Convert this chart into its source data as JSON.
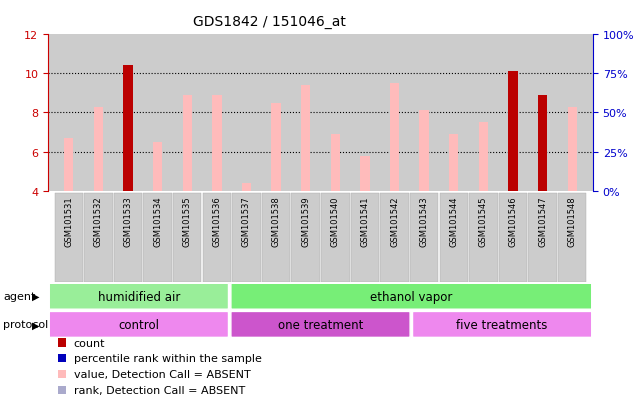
{
  "title": "GDS1842 / 151046_at",
  "samples": [
    "GSM101531",
    "GSM101532",
    "GSM101533",
    "GSM101534",
    "GSM101535",
    "GSM101536",
    "GSM101537",
    "GSM101538",
    "GSM101539",
    "GSM101540",
    "GSM101541",
    "GSM101542",
    "GSM101543",
    "GSM101544",
    "GSM101545",
    "GSM101546",
    "GSM101547",
    "GSM101548"
  ],
  "value_bars": [
    6.7,
    8.3,
    10.4,
    6.5,
    8.9,
    8.9,
    4.4,
    8.5,
    9.4,
    6.9,
    5.8,
    9.5,
    8.1,
    6.9,
    7.5,
    10.1,
    8.9,
    8.3
  ],
  "is_count": [
    false,
    false,
    true,
    false,
    false,
    false,
    false,
    false,
    false,
    false,
    false,
    false,
    false,
    false,
    false,
    true,
    true,
    false
  ],
  "rank_bars_pct": [
    2,
    2,
    0,
    2,
    2,
    2,
    2,
    2,
    2,
    2,
    2,
    2,
    2,
    2,
    2,
    0,
    0,
    2
  ],
  "rank_bar_color": "#aaaacc",
  "value_bar_color_normal": "#ffbbbb",
  "value_bar_color_count": "#bb0000",
  "ylim_left": [
    4,
    12
  ],
  "ylim_right": [
    0,
    100
  ],
  "yticks_left": [
    4,
    6,
    8,
    10,
    12
  ],
  "yticks_right": [
    0,
    25,
    50,
    75,
    100
  ],
  "ylabel_left_color": "#cc0000",
  "ylabel_right_color": "#0000cc",
  "agent_groups": [
    {
      "label": "humidified air",
      "start": 0,
      "end": 6,
      "color": "#99ee99"
    },
    {
      "label": "ethanol vapor",
      "start": 6,
      "end": 18,
      "color": "#77ee77"
    }
  ],
  "protocol_groups": [
    {
      "label": "control",
      "start": 0,
      "end": 6,
      "color": "#ee88ee"
    },
    {
      "label": "one treatment",
      "start": 6,
      "end": 12,
      "color": "#dd66dd"
    },
    {
      "label": "five treatments",
      "start": 12,
      "end": 18,
      "color": "#ee88ee"
    }
  ],
  "bar_width": 0.45,
  "grid_color": "black",
  "background_color": "#cccccc",
  "legend_items": [
    {
      "color": "#bb0000",
      "label": "count"
    },
    {
      "color": "#0000bb",
      "label": "percentile rank within the sample"
    },
    {
      "color": "#ffbbbb",
      "label": "value, Detection Call = ABSENT"
    },
    {
      "color": "#aaaacc",
      "label": "rank, Detection Call = ABSENT"
    }
  ]
}
